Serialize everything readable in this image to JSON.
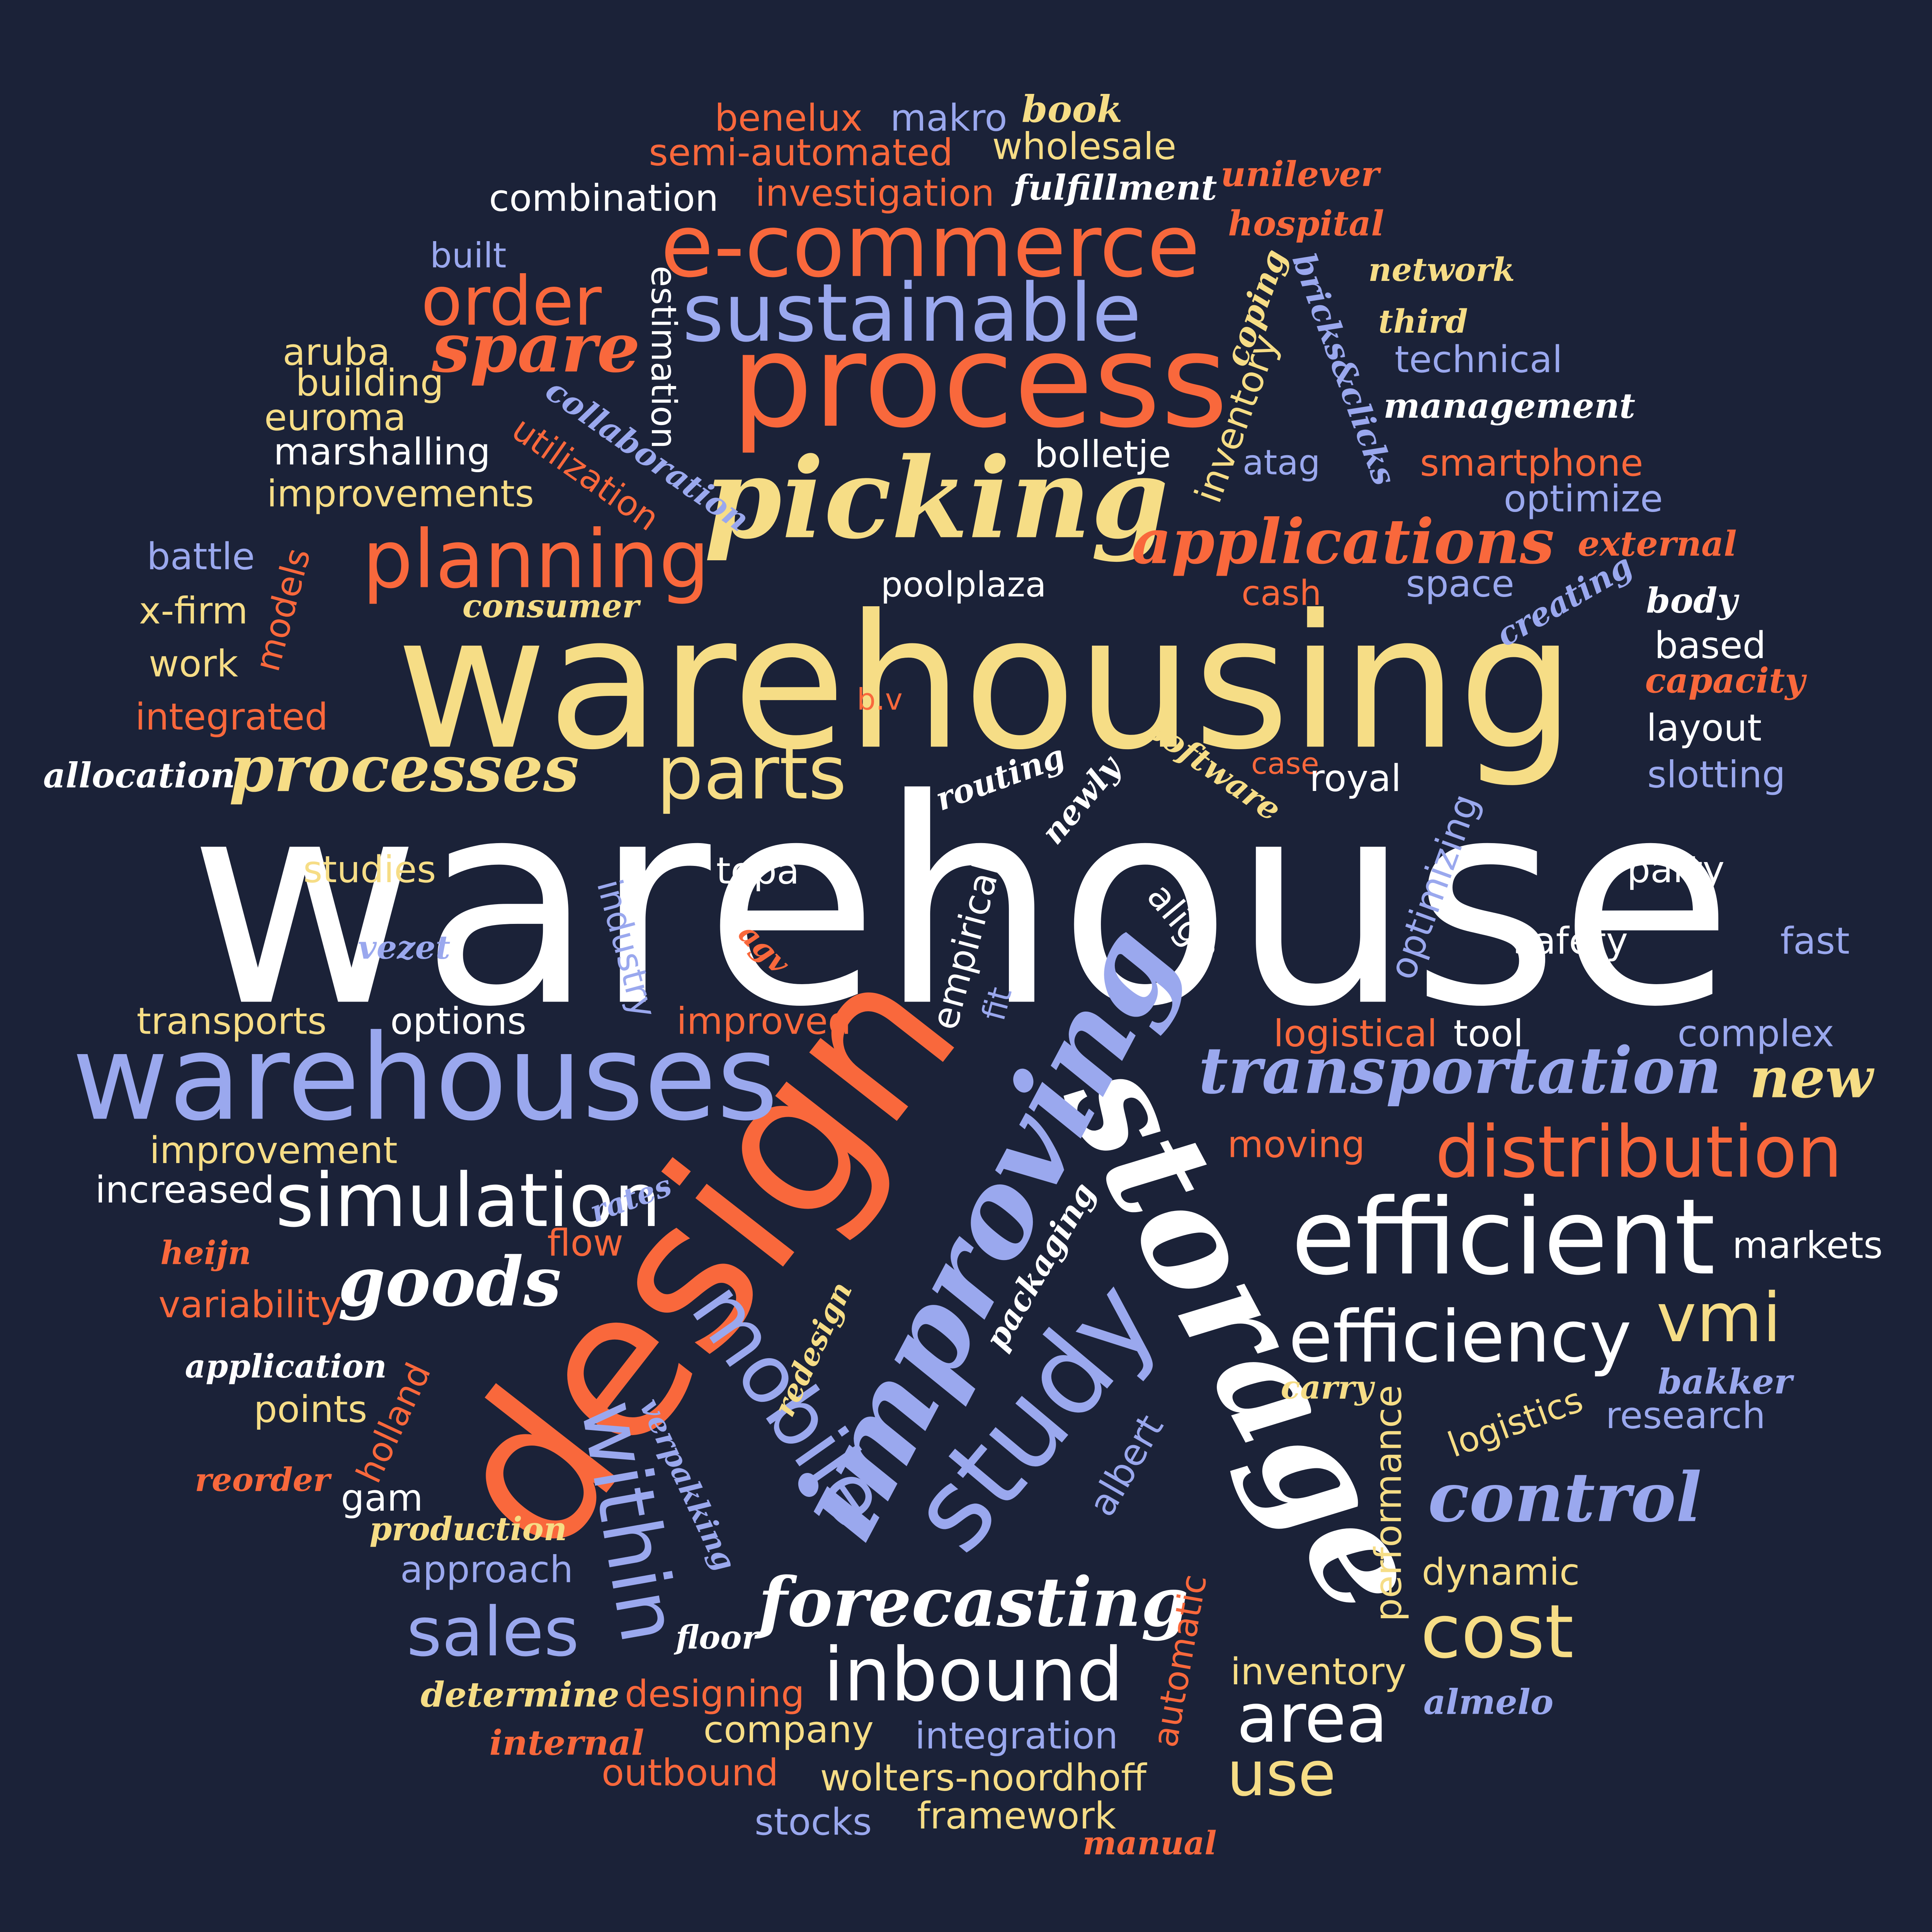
{
  "background": "#1b2238",
  "palette": {
    "white": "#ffffff",
    "yellow": "#f6dd86",
    "orange": "#f9683c",
    "blue": "#9aa8ee"
  },
  "words": [
    {
      "text": "warehouse",
      "color": "white",
      "rot": 0
    },
    {
      "text": "warehousing",
      "color": "yellow",
      "rot": 0
    },
    {
      "text": "design",
      "color": "orange",
      "rot": -52
    },
    {
      "text": "storage",
      "color": "white",
      "rot": 62
    },
    {
      "text": "improving",
      "color": "blue",
      "rot": -62
    },
    {
      "text": "warehouses",
      "color": "blue",
      "rot": 0
    },
    {
      "text": "process",
      "color": "orange",
      "rot": 0
    },
    {
      "text": "picking",
      "color": "yellow",
      "rot": 0
    },
    {
      "text": "efficient",
      "color": "white",
      "rot": 0
    },
    {
      "text": "study",
      "color": "blue",
      "rot": -50
    },
    {
      "text": "e-commerce",
      "color": "orange",
      "rot": 0
    },
    {
      "text": "sustainable",
      "color": "blue",
      "rot": 0
    },
    {
      "text": "planning",
      "color": "orange",
      "rot": 0
    },
    {
      "text": "efficiency",
      "color": "white",
      "rot": 0
    },
    {
      "text": "distribution",
      "color": "orange",
      "rot": 0
    },
    {
      "text": "transportation",
      "color": "blue",
      "rot": 0
    },
    {
      "text": "simulation",
      "color": "white",
      "rot": 0
    },
    {
      "text": "applications",
      "color": "orange",
      "rot": 0
    },
    {
      "text": "processes",
      "color": "yellow",
      "rot": 0
    },
    {
      "text": "parts",
      "color": "yellow",
      "rot": 0
    },
    {
      "text": "order",
      "color": "orange",
      "rot": 0
    },
    {
      "text": "spare",
      "color": "orange",
      "rot": 0
    },
    {
      "text": "mobile",
      "color": "blue",
      "rot": 55
    },
    {
      "text": "within",
      "color": "blue",
      "rot": 80
    },
    {
      "text": "inbound",
      "color": "white",
      "rot": 0
    },
    {
      "text": "forecasting",
      "color": "white",
      "rot": 0
    },
    {
      "text": "control",
      "color": "blue",
      "rot": 0
    },
    {
      "text": "cost",
      "color": "yellow",
      "rot": 0
    },
    {
      "text": "area",
      "color": "white",
      "rot": 0
    },
    {
      "text": "sales",
      "color": "blue",
      "rot": 0
    },
    {
      "text": "goods",
      "color": "white",
      "rot": 0
    },
    {
      "text": "vmi",
      "color": "yellow",
      "rot": 0
    },
    {
      "text": "new",
      "color": "yellow",
      "rot": 0
    },
    {
      "text": "use",
      "color": "yellow",
      "rot": 0
    },
    {
      "text": "benelux",
      "color": "orange",
      "rot": 0
    },
    {
      "text": "makro",
      "color": "blue",
      "rot": 0
    },
    {
      "text": "book",
      "color": "yellow",
      "rot": 0
    },
    {
      "text": "semi-automated",
      "color": "orange",
      "rot": 0
    },
    {
      "text": "wholesale",
      "color": "yellow",
      "rot": 0
    },
    {
      "text": "unilever",
      "color": "orange",
      "rot": 0
    },
    {
      "text": "combination",
      "color": "white",
      "rot": 0
    },
    {
      "text": "investigation",
      "color": "orange",
      "rot": 0
    },
    {
      "text": "fulfillment",
      "color": "white",
      "rot": 0
    },
    {
      "text": "hospital",
      "color": "orange",
      "rot": 0
    },
    {
      "text": "built",
      "color": "blue",
      "rot": 0
    },
    {
      "text": "estimation",
      "color": "white",
      "rot": 90
    },
    {
      "text": "coping",
      "color": "yellow",
      "rot": -70
    },
    {
      "text": "bricks&clicks",
      "color": "blue",
      "rot": 70
    },
    {
      "text": "network",
      "color": "yellow",
      "rot": 0
    },
    {
      "text": "third",
      "color": "yellow",
      "rot": 0
    },
    {
      "text": "technical",
      "color": "blue",
      "rot": 0
    },
    {
      "text": "management",
      "color": "white",
      "rot": 0
    },
    {
      "text": "aruba",
      "color": "yellow",
      "rot": 0
    },
    {
      "text": "building",
      "color": "yellow",
      "rot": 0
    },
    {
      "text": "euroma",
      "color": "yellow",
      "rot": 0
    },
    {
      "text": "marshalling",
      "color": "white",
      "rot": 0
    },
    {
      "text": "improvements",
      "color": "yellow",
      "rot": 0
    },
    {
      "text": "collaboration",
      "color": "blue",
      "rot": 35
    },
    {
      "text": "utilization",
      "color": "orange",
      "rot": 35
    },
    {
      "text": "bolletje",
      "color": "white",
      "rot": 0
    },
    {
      "text": "inventory",
      "color": "yellow",
      "rot": -70
    },
    {
      "text": "atag",
      "color": "blue",
      "rot": 0
    },
    {
      "text": "smartphone",
      "color": "orange",
      "rot": 0
    },
    {
      "text": "optimize",
      "color": "blue",
      "rot": 0
    },
    {
      "text": "battle",
      "color": "blue",
      "rot": 0
    },
    {
      "text": "x-firm",
      "color": "yellow",
      "rot": 0
    },
    {
      "text": "models",
      "color": "orange",
      "rot": -75
    },
    {
      "text": "consumer",
      "color": "yellow",
      "rot": 0
    },
    {
      "text": "work",
      "color": "yellow",
      "rot": 0
    },
    {
      "text": "poolplaza",
      "color": "white",
      "rot": 0
    },
    {
      "text": "cash",
      "color": "orange",
      "rot": 0
    },
    {
      "text": "space",
      "color": "blue",
      "rot": 0
    },
    {
      "text": "creating",
      "color": "blue",
      "rot": -30
    },
    {
      "text": "external",
      "color": "orange",
      "rot": 0
    },
    {
      "text": "body",
      "color": "white",
      "rot": 0
    },
    {
      "text": "based",
      "color": "white",
      "rot": 0
    },
    {
      "text": "capacity",
      "color": "orange",
      "rot": 0
    },
    {
      "text": "integrated",
      "color": "orange",
      "rot": 0
    },
    {
      "text": "b.v",
      "color": "orange",
      "rot": 0
    },
    {
      "text": "layout",
      "color": "white",
      "rot": 0
    },
    {
      "text": "allocation",
      "color": "white",
      "rot": 0
    },
    {
      "text": "routing",
      "color": "white",
      "rot": -20
    },
    {
      "text": "newly",
      "color": "white",
      "rot": -50
    },
    {
      "text": "software",
      "color": "yellow",
      "rot": 35
    },
    {
      "text": "case",
      "color": "orange",
      "rot": 0
    },
    {
      "text": "royal",
      "color": "white",
      "rot": 0
    },
    {
      "text": "slotting",
      "color": "blue",
      "rot": 0
    },
    {
      "text": "optimizing",
      "color": "blue",
      "rot": -70
    },
    {
      "text": "studies",
      "color": "yellow",
      "rot": 0
    },
    {
      "text": "topa",
      "color": "white",
      "rot": 0
    },
    {
      "text": "industry",
      "color": "blue",
      "rot": 75
    },
    {
      "text": "empirical",
      "color": "white",
      "rot": -75
    },
    {
      "text": "align",
      "color": "white",
      "rot": 50
    },
    {
      "text": "party",
      "color": "white",
      "rot": 0
    },
    {
      "text": "vezet",
      "color": "blue",
      "rot": 0
    },
    {
      "text": "agv",
      "color": "orange",
      "rot": 45
    },
    {
      "text": "safety",
      "color": "white",
      "rot": 0
    },
    {
      "text": "fast",
      "color": "blue",
      "rot": 0
    },
    {
      "text": "transports",
      "color": "yellow",
      "rot": 0
    },
    {
      "text": "options",
      "color": "white",
      "rot": 0
    },
    {
      "text": "improved",
      "color": "orange",
      "rot": 0
    },
    {
      "text": "fit",
      "color": "blue",
      "rot": -75
    },
    {
      "text": "logistical",
      "color": "orange",
      "rot": 0
    },
    {
      "text": "tool",
      "color": "white",
      "rot": 0
    },
    {
      "text": "complex",
      "color": "blue",
      "rot": 0
    },
    {
      "text": "improvement",
      "color": "yellow",
      "rot": 0
    },
    {
      "text": "moving",
      "color": "orange",
      "rot": 0
    },
    {
      "text": "increased",
      "color": "white",
      "rot": 0
    },
    {
      "text": "rates",
      "color": "blue",
      "rot": -20
    },
    {
      "text": "packaging",
      "color": "white",
      "rot": -60
    },
    {
      "text": "markets",
      "color": "white",
      "rot": 0
    },
    {
      "text": "heijn",
      "color": "orange",
      "rot": 0
    },
    {
      "text": "flow",
      "color": "orange",
      "rot": 0
    },
    {
      "text": "variability",
      "color": "orange",
      "rot": 0
    },
    {
      "text": "redesign",
      "color": "yellow",
      "rot": -65
    },
    {
      "text": "application",
      "color": "white",
      "rot": 0
    },
    {
      "text": "bakker",
      "color": "blue",
      "rot": 0
    },
    {
      "text": "carry",
      "color": "yellow",
      "rot": 0
    },
    {
      "text": "points",
      "color": "yellow",
      "rot": 0
    },
    {
      "text": "holland",
      "color": "orange",
      "rot": -65
    },
    {
      "text": "verpakking",
      "color": "blue",
      "rot": 65
    },
    {
      "text": "logistics",
      "color": "yellow",
      "rot": -20
    },
    {
      "text": "research",
      "color": "blue",
      "rot": 0
    },
    {
      "text": "reorder",
      "color": "orange",
      "rot": 0
    },
    {
      "text": "gam",
      "color": "white",
      "rot": 0
    },
    {
      "text": "albert",
      "color": "blue",
      "rot": -60
    },
    {
      "text": "performance",
      "color": "yellow",
      "rot": -90
    },
    {
      "text": "production",
      "color": "yellow",
      "rot": 0
    },
    {
      "text": "approach",
      "color": "blue",
      "rot": 0
    },
    {
      "text": "dynamic",
      "color": "yellow",
      "rot": 0
    },
    {
      "text": "floor",
      "color": "white",
      "rot": 0
    },
    {
      "text": "automatic",
      "color": "orange",
      "rot": -80
    },
    {
      "text": "inventory",
      "color": "yellow",
      "rot": 0
    },
    {
      "text": "determine",
      "color": "yellow",
      "rot": 0
    },
    {
      "text": "designing",
      "color": "orange",
      "rot": 0
    },
    {
      "text": "almelo",
      "color": "blue",
      "rot": 0
    },
    {
      "text": "internal",
      "color": "orange",
      "rot": 0
    },
    {
      "text": "company",
      "color": "yellow",
      "rot": 0
    },
    {
      "text": "integration",
      "color": "blue",
      "rot": 0
    },
    {
      "text": "outbound",
      "color": "orange",
      "rot": 0
    },
    {
      "text": "wolters-noordhoff",
      "color": "yellow",
      "rot": 0
    },
    {
      "text": "stocks",
      "color": "blue",
      "rot": 0
    },
    {
      "text": "framework",
      "color": "yellow",
      "rot": 0
    },
    {
      "text": "manual",
      "color": "orange",
      "rot": 0
    }
  ]
}
